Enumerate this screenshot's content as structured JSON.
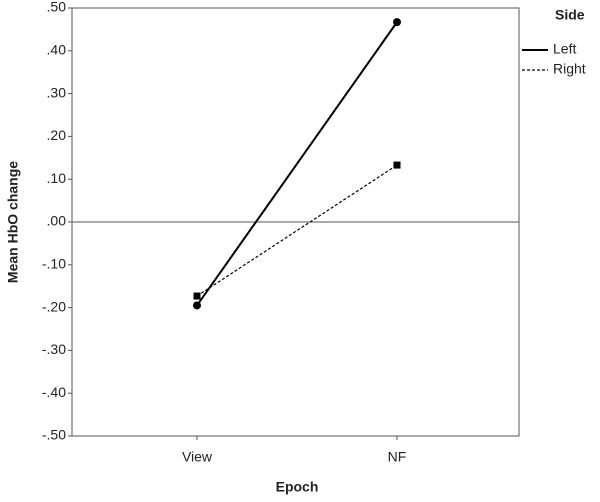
{
  "chart_data": {
    "type": "line",
    "x_label": "Epoch",
    "y_label": "Mean HbO change",
    "categories": [
      "View",
      "NF"
    ],
    "series": [
      {
        "name": "Left",
        "color": "#000000",
        "style": "solid",
        "marker": "circle",
        "values": [
          -0.195,
          0.467
        ]
      },
      {
        "name": "Right",
        "color": "#000000",
        "style": "dashed",
        "marker": "square",
        "values": [
          -0.173,
          0.133
        ]
      }
    ],
    "legend_title": "Side",
    "legend_position": "right",
    "reference_line": 0,
    "ylim": [
      -0.5,
      0.5
    ],
    "yticks": [
      {
        "value": -0.5,
        "label": "-.50"
      },
      {
        "value": -0.4,
        "label": "-.40"
      },
      {
        "value": -0.3,
        "label": "-.30"
      },
      {
        "value": -0.2,
        "label": "-.20"
      },
      {
        "value": -0.1,
        "label": "-.10"
      },
      {
        "value": 0,
        "label": ".00"
      },
      {
        "value": 0.1,
        "label": ".10"
      },
      {
        "value": 0.2,
        "label": ".20"
      },
      {
        "value": 0.3,
        "label": ".30"
      },
      {
        "value": 0.4,
        "label": ".40"
      },
      {
        "value": 0.5,
        "label": ".50"
      }
    ]
  }
}
